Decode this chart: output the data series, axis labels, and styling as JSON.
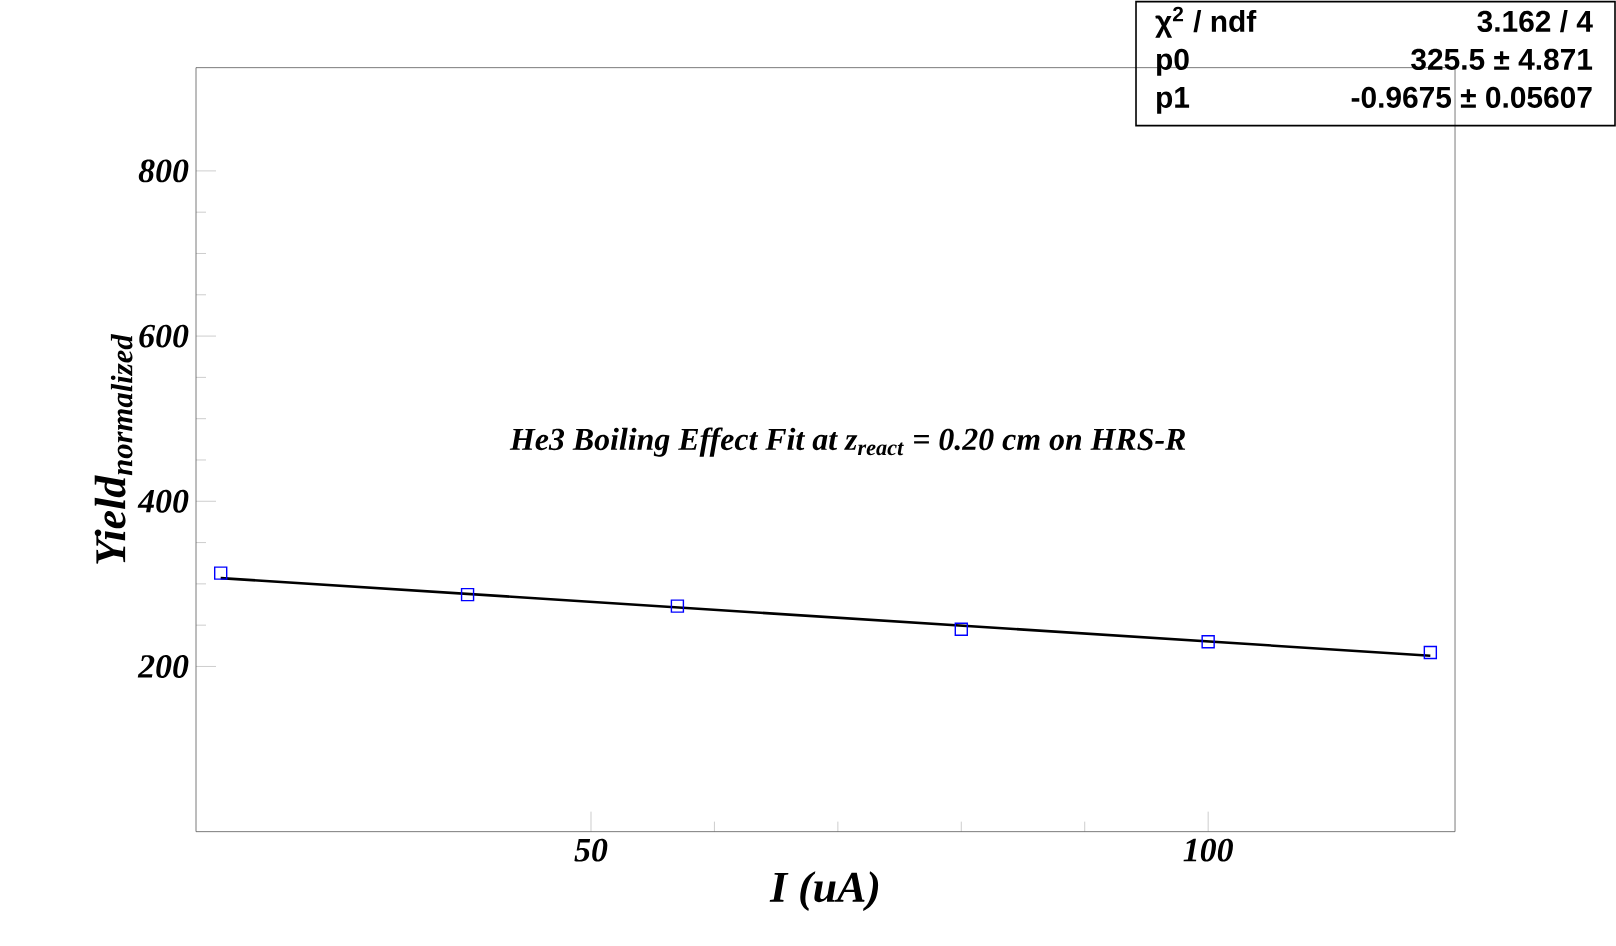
{
  "chart_data": {
    "type": "scatter",
    "xlabel": "I (uA)",
    "ylabel": "\\text{Yield}_{\\text{normalized}}",
    "xlim": [
      18,
      120
    ],
    "ylim": [
      0,
      925
    ],
    "xticks": [
      50,
      100
    ],
    "yticks": [
      200,
      400,
      600,
      800
    ],
    "series": [
      {
        "marker": "square",
        "color": "#0000ff",
        "x": [
          20,
          40,
          57,
          80,
          100,
          118
        ],
        "values": [
          313,
          287,
          273,
          245,
          230,
          217
        ]
      },
      {
        "type": "line",
        "color": "#000000",
        "x": [
          20,
          118
        ],
        "values": [
          307,
          213
        ]
      }
    ],
    "annotations": [
      "He3 Boiling Effect Fit at z$_{react}$ = 0.20 cm on HRS-R",
      "χ$^{2}$ / ndf",
      "3.162 / 4",
      "p0",
      "325.5 ± 4.871",
      "p1",
      "-0.9675 ± 0.05607"
    ]
  }
}
